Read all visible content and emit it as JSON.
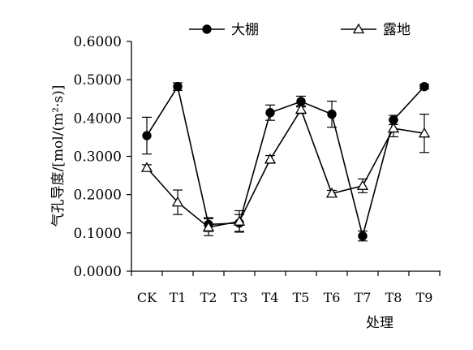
{
  "chart_data": {
    "type": "line",
    "title": "",
    "xlabel": "处理",
    "ylabel": "气孔导度/[mol/(m²·s)]",
    "ylim": [
      0,
      0.6
    ],
    "yticks": [
      "0.0000",
      "0.1000",
      "0.2000",
      "0.3000",
      "0.4000",
      "0.5000",
      "0.6000"
    ],
    "categories": [
      "CK",
      "T1",
      "T2",
      "T3",
      "T4",
      "T5",
      "T6",
      "T7",
      "T8",
      "T9"
    ],
    "legend_position": "top",
    "grid": false,
    "series": [
      {
        "name": "大棚",
        "marker": "filled-circle",
        "values": [
          0.354,
          0.482,
          0.122,
          0.126,
          0.414,
          0.443,
          0.41,
          0.092,
          0.395,
          0.482
        ],
        "errors": [
          0.048,
          0.01,
          0.018,
          0.022,
          0.02,
          0.014,
          0.034,
          0.013,
          0.012,
          0.006
        ]
      },
      {
        "name": "露地",
        "marker": "open-triangle",
        "values": [
          0.27,
          0.18,
          0.115,
          0.13,
          0.292,
          0.422,
          0.203,
          0.223,
          0.373,
          0.36
        ],
        "errors": [
          0.008,
          0.032,
          0.022,
          0.028,
          0.01,
          0.01,
          0.008,
          0.018,
          0.022,
          0.05
        ]
      }
    ]
  }
}
